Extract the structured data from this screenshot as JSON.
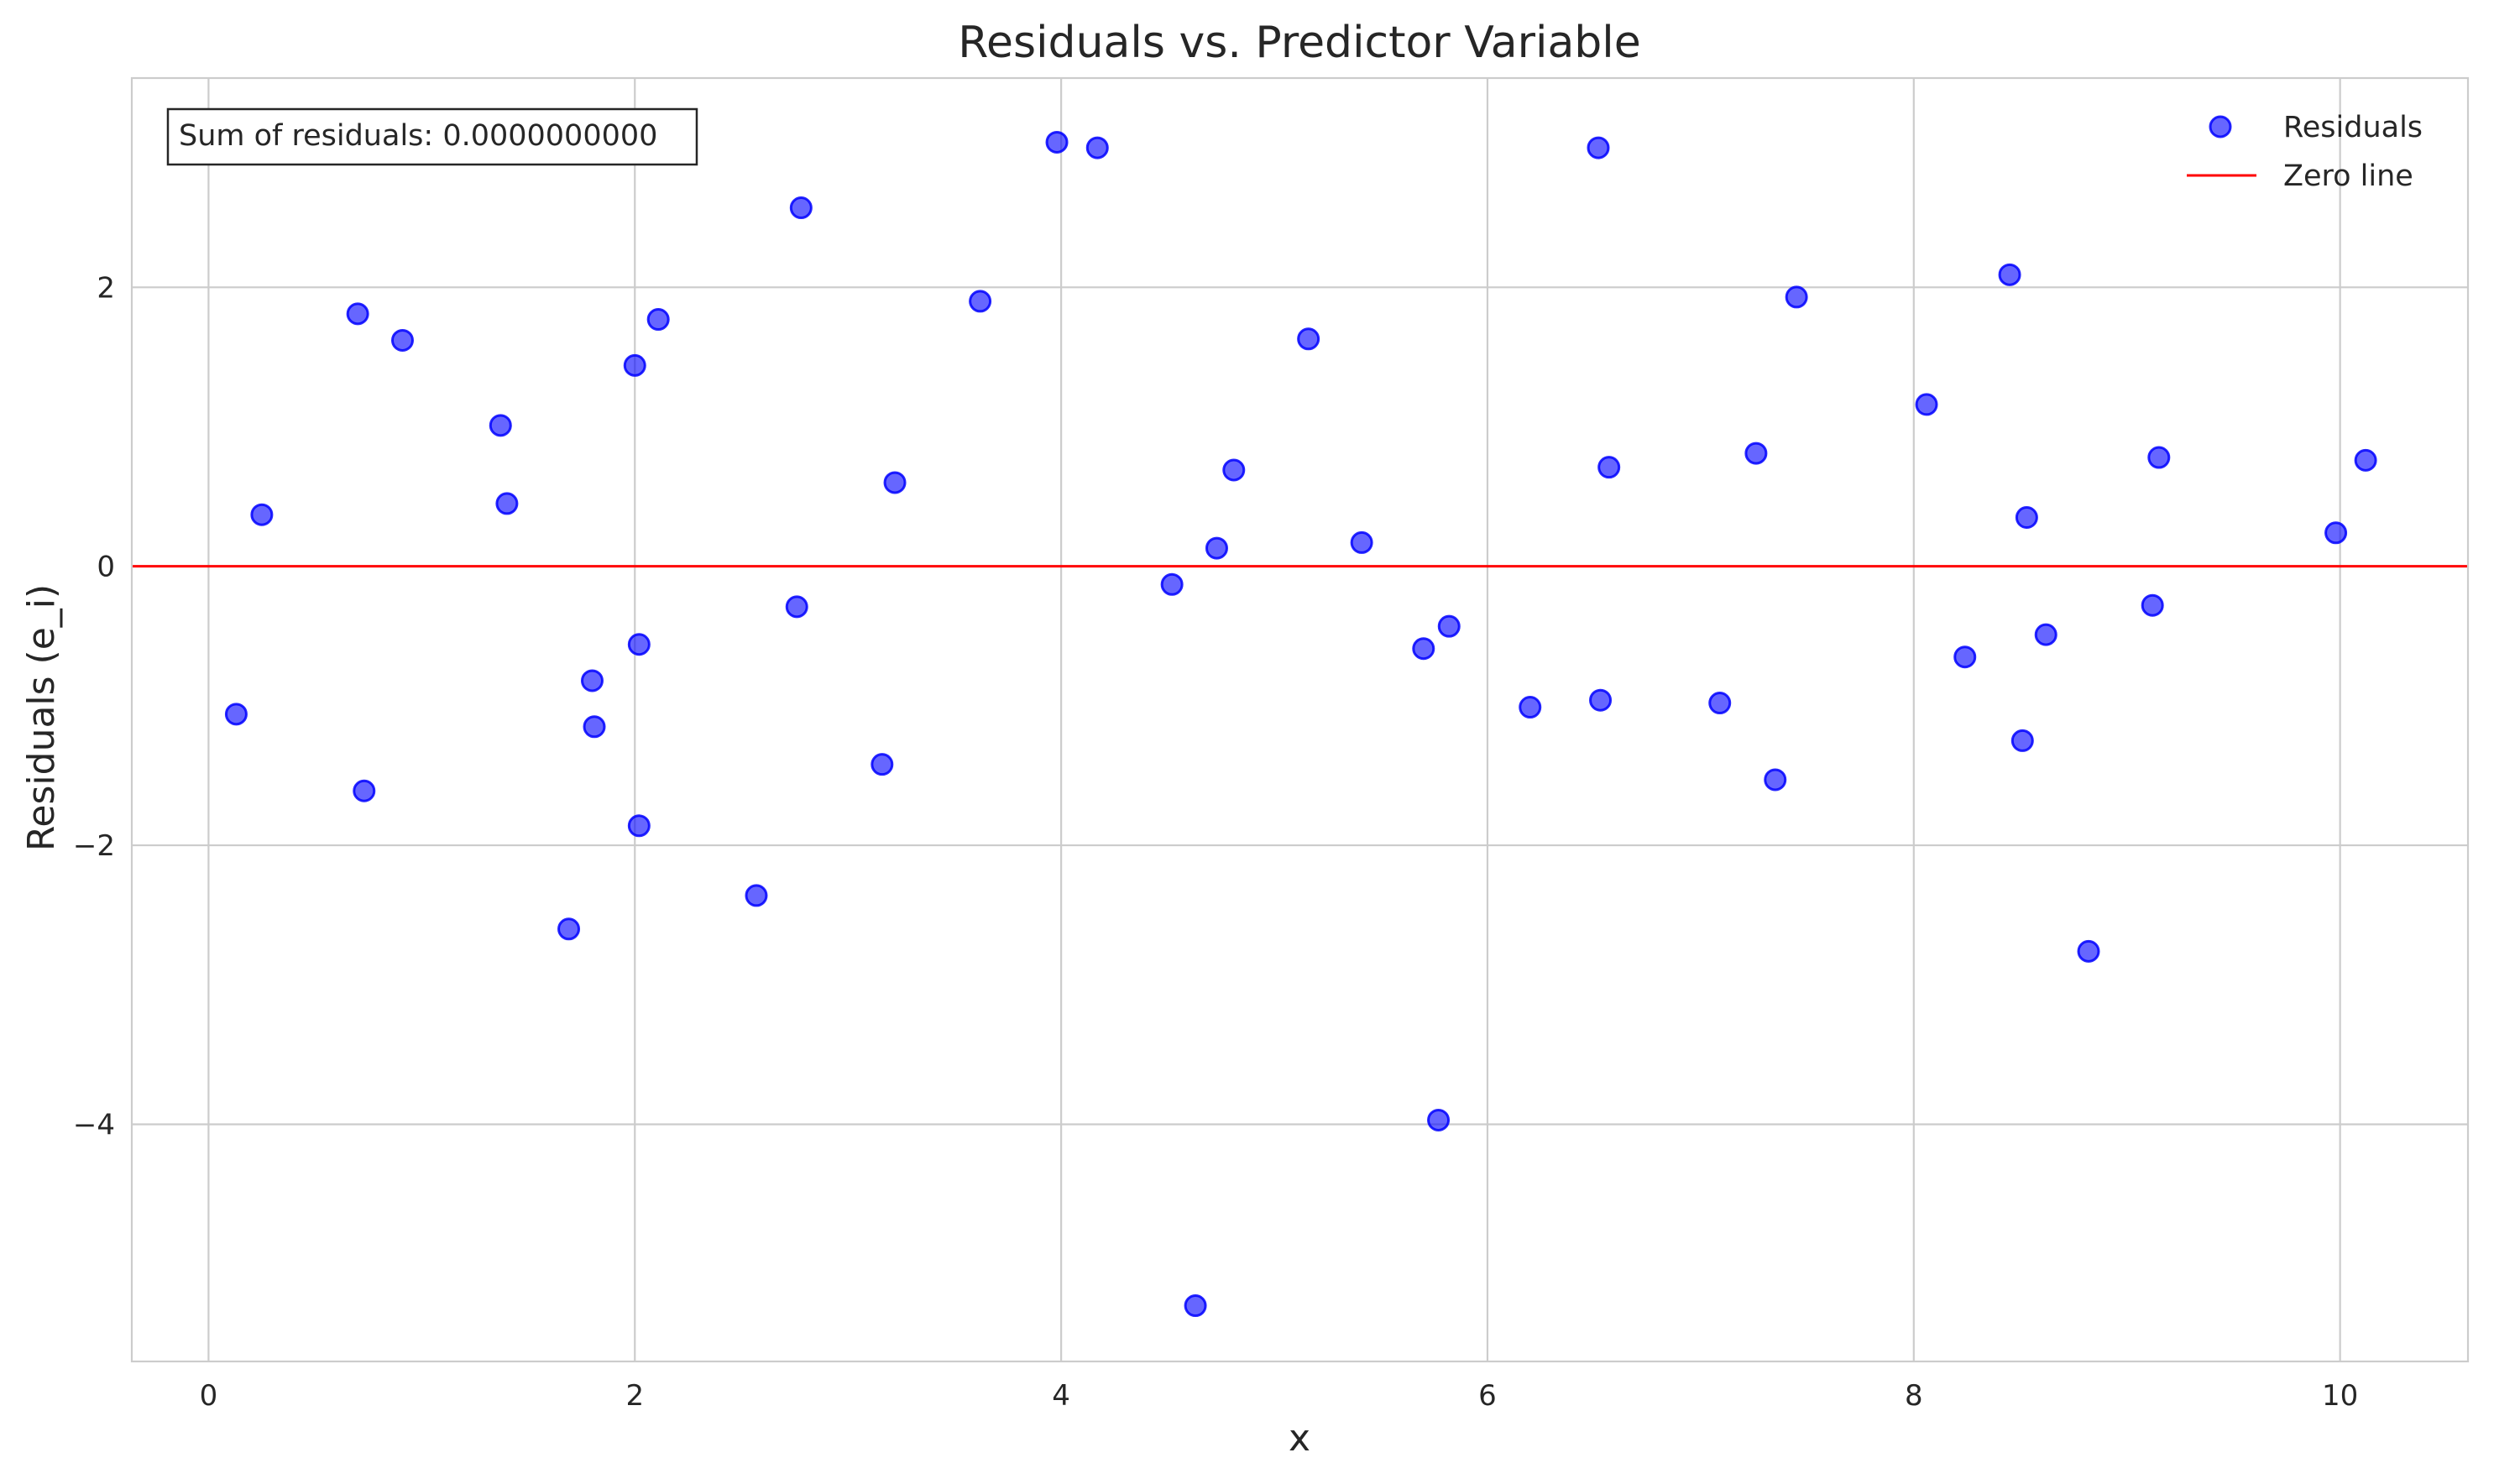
{
  "chart_data": {
    "type": "scatter",
    "title": "Residuals vs. Predictor Variable",
    "xlabel": "x",
    "ylabel": "Residuals (e_i)",
    "xlim": [
      -0.36,
      10.6
    ],
    "ylim": [
      -5.7,
      3.5
    ],
    "xticks": [
      0,
      2,
      4,
      6,
      8,
      10
    ],
    "yticks": [
      2,
      0,
      -2,
      -4
    ],
    "xtick_labels": [
      "0",
      "2",
      "4",
      "6",
      "8",
      "10"
    ],
    "ytick_labels": [
      "2",
      "0",
      "−2",
      "−4"
    ],
    "grid": true,
    "legend_position": "top-right",
    "annotation": "Sum of residuals: 0.0000000000",
    "annotation_position": "top-left",
    "series": [
      {
        "name": "Residuals",
        "kind": "scatter",
        "color": "#0000ff",
        "points": [
          [
            0.13,
            -1.06
          ],
          [
            0.25,
            0.37
          ],
          [
            0.7,
            1.81
          ],
          [
            0.73,
            -1.61
          ],
          [
            0.91,
            1.62
          ],
          [
            1.37,
            1.01
          ],
          [
            1.4,
            0.45
          ],
          [
            1.69,
            -2.6
          ],
          [
            1.8,
            -0.82
          ],
          [
            1.81,
            -1.15
          ],
          [
            2.0,
            1.44
          ],
          [
            2.02,
            -0.56
          ],
          [
            2.02,
            -1.86
          ],
          [
            2.11,
            1.77
          ],
          [
            2.57,
            -2.36
          ],
          [
            2.76,
            -0.29
          ],
          [
            2.78,
            2.57
          ],
          [
            3.16,
            -1.42
          ],
          [
            3.22,
            0.6
          ],
          [
            3.62,
            1.9
          ],
          [
            3.98,
            3.04
          ],
          [
            4.17,
            3.0
          ],
          [
            4.52,
            -0.13
          ],
          [
            4.63,
            -5.3
          ],
          [
            4.73,
            0.13
          ],
          [
            4.81,
            0.69
          ],
          [
            5.16,
            1.63
          ],
          [
            5.41,
            0.17
          ],
          [
            5.7,
            -0.59
          ],
          [
            5.77,
            -3.97
          ],
          [
            5.82,
            -0.43
          ],
          [
            6.2,
            -1.01
          ],
          [
            6.52,
            3.0
          ],
          [
            6.53,
            -0.96
          ],
          [
            6.57,
            0.71
          ],
          [
            7.09,
            -0.98
          ],
          [
            7.26,
            0.81
          ],
          [
            7.35,
            -1.53
          ],
          [
            7.45,
            1.93
          ],
          [
            8.06,
            1.16
          ],
          [
            8.24,
            -0.65
          ],
          [
            8.45,
            2.09
          ],
          [
            8.51,
            -1.25
          ],
          [
            8.53,
            0.35
          ],
          [
            8.62,
            -0.49
          ],
          [
            8.82,
            -2.76
          ],
          [
            9.12,
            -0.28
          ],
          [
            9.15,
            0.78
          ],
          [
            9.98,
            0.24
          ],
          [
            10.12,
            0.76
          ]
        ]
      },
      {
        "name": "Zero line",
        "kind": "line",
        "color": "#ff0000",
        "y": 0
      }
    ]
  }
}
